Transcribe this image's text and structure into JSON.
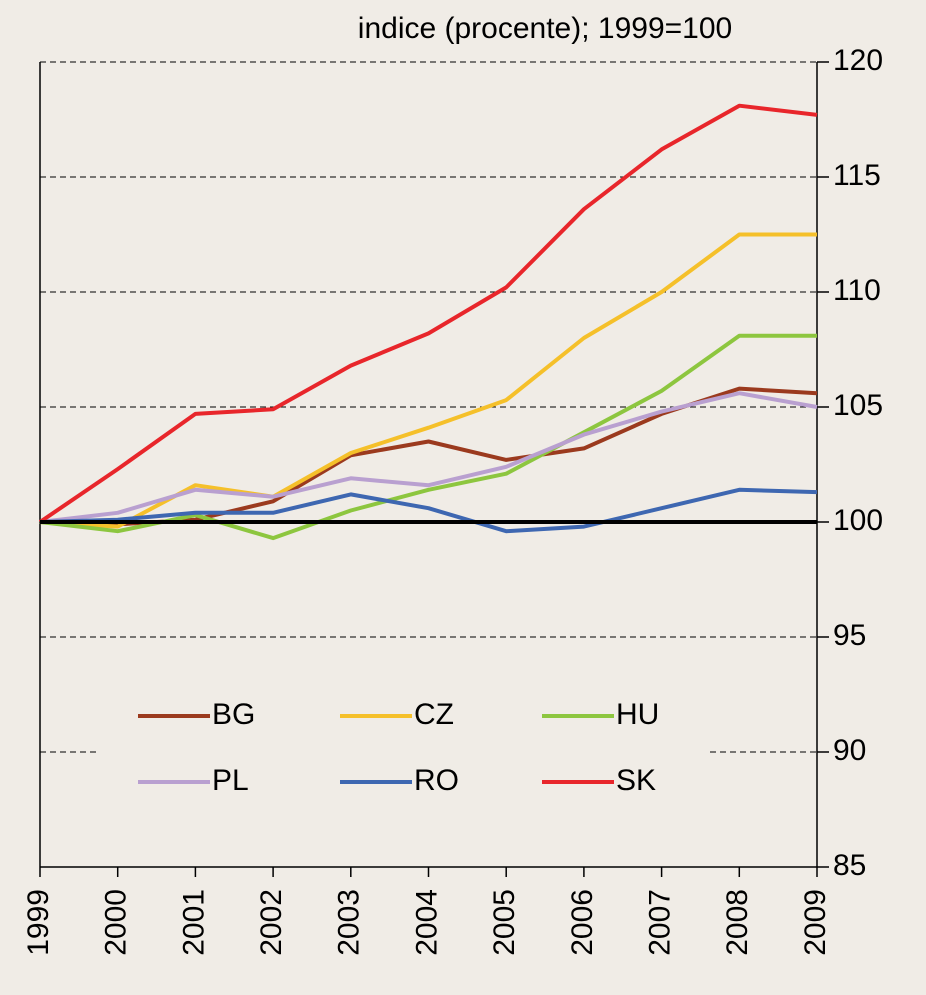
{
  "chart_data": {
    "type": "line",
    "title": "indice (procente); 1999=100",
    "categories": [
      "1999",
      "2000",
      "2001",
      "2002",
      "2003",
      "2004",
      "2005",
      "2006",
      "2007",
      "2008",
      "2009"
    ],
    "series": [
      {
        "name": "BG",
        "color": "#9b3a1e",
        "values": [
          100,
          99.9,
          100.1,
          100.9,
          102.9,
          103.5,
          102.7,
          103.2,
          104.7,
          105.8,
          105.6
        ]
      },
      {
        "name": "CZ",
        "color": "#f5c02a",
        "values": [
          100,
          99.8,
          101.6,
          101.1,
          103.0,
          104.1,
          105.3,
          108.0,
          110.0,
          112.5,
          112.5
        ]
      },
      {
        "name": "HU",
        "color": "#8dc63f",
        "values": [
          100,
          99.6,
          100.3,
          99.3,
          100.5,
          101.4,
          102.1,
          103.9,
          105.7,
          108.1,
          108.1
        ]
      },
      {
        "name": "PL",
        "color": "#b9a0d0",
        "values": [
          100,
          100.4,
          101.4,
          101.1,
          101.9,
          101.6,
          102.4,
          103.8,
          104.8,
          105.6,
          105.0
        ]
      },
      {
        "name": "RO",
        "color": "#3e67b1",
        "values": [
          100,
          100.1,
          100.4,
          100.4,
          101.2,
          100.6,
          99.6,
          99.8,
          100.6,
          101.4,
          101.3
        ]
      },
      {
        "name": "SK",
        "color": "#e8262b",
        "values": [
          100,
          102.3,
          104.7,
          104.9,
          106.8,
          108.2,
          110.2,
          113.6,
          116.2,
          118.1,
          117.7
        ]
      }
    ],
    "ylim": [
      85,
      120
    ],
    "yticks": [
      85,
      90,
      95,
      100,
      105,
      110,
      115,
      120
    ],
    "grid": true,
    "baseline": 100
  }
}
